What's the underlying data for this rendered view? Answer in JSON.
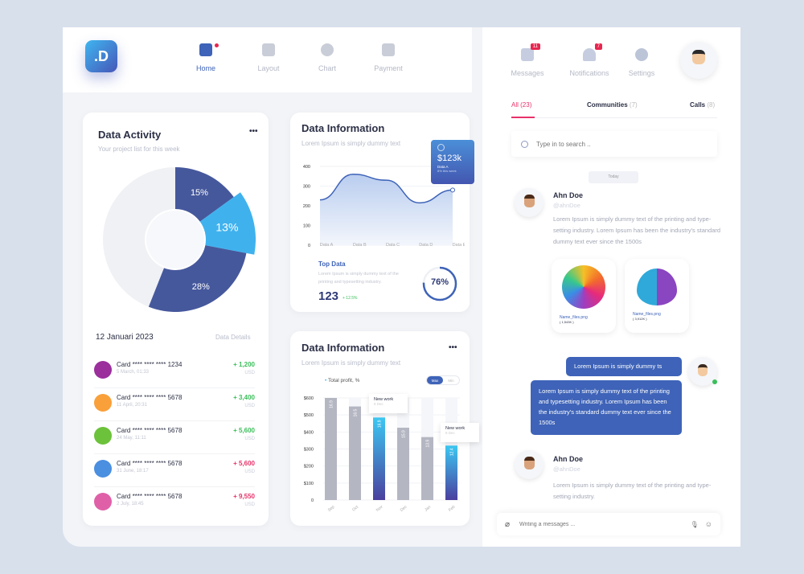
{
  "logo": ".D",
  "nav": [
    {
      "label": "Home",
      "active": true,
      "icon": "home-icon"
    },
    {
      "label": "Layout",
      "icon": "layout-icon"
    },
    {
      "label": "Chart",
      "icon": "pie-chart-icon"
    },
    {
      "label": "Payment",
      "icon": "wallet-icon"
    }
  ],
  "activity": {
    "title": "Data Activity",
    "subtitle": "Your project list for this week",
    "menu": "•••",
    "date": "12 Januari 2023",
    "details": "Data Details",
    "donut": [
      {
        "label": "15%",
        "value": 15,
        "color": "#46589c"
      },
      {
        "label": "13%",
        "value": 13,
        "color": "#3fb2ee"
      },
      {
        "label": "28%",
        "value": 28,
        "color": "#46589c"
      }
    ],
    "rows": [
      {
        "card": "Card **** **** **** 1234",
        "date": "5 March, 01:33",
        "amount": "+ 1,200",
        "unit": "USD",
        "positive": true,
        "color": "#9b2f9c"
      },
      {
        "card": "Card **** **** **** 5678",
        "date": "11 April, 20:31",
        "amount": "+ 3,400",
        "unit": "USD",
        "positive": true,
        "color": "#f9a03a"
      },
      {
        "card": "Card **** **** **** 5678",
        "date": "24 May, 11:11",
        "amount": "+ 5,600",
        "unit": "USD",
        "positive": true,
        "color": "#6cc23a"
      },
      {
        "card": "Card **** **** **** 5678",
        "date": "31 June, 18:17",
        "amount": "+ 5,600",
        "unit": "USD",
        "positive": false,
        "color": "#4a8fe0"
      },
      {
        "card": "Card **** **** **** 5678",
        "date": "2 July, 18:45",
        "amount": "+ 9,550",
        "unit": "USD",
        "positive": false,
        "color": "#e060a8"
      }
    ]
  },
  "info1": {
    "title": "Data Information",
    "subtitle": "Lorem Ipsum is simply dummy text",
    "tooltip": {
      "value": "$123k",
      "label": "Data A",
      "note": "8% this week"
    },
    "top": {
      "title": "Top Data",
      "text": "Lorem Ipsum is simply dummy text of the printing and typesetting industry.",
      "value": "123",
      "change": "+ 12.5%",
      "percent_label": "76%",
      "percent": 76
    }
  },
  "info2": {
    "title": "Data Information",
    "subtitle": "Lorem Ipsum is simply dummy text",
    "menu": "•••",
    "legend": "Total profit, %",
    "toggle": [
      "Max",
      "Min"
    ],
    "tooltips": [
      {
        "title": "New work",
        "date": "8 Dec"
      },
      {
        "title": "New work",
        "date": "8 Dec"
      }
    ]
  },
  "chart_data": [
    {
      "type": "area",
      "categories": [
        "Data A",
        "Data B",
        "Data C",
        "Data D",
        "Data E"
      ],
      "values": [
        230,
        360,
        330,
        215,
        280
      ],
      "ylim": [
        0,
        400
      ],
      "yticks": [
        "0",
        "100",
        "200",
        "300",
        "400"
      ]
    },
    {
      "type": "bar",
      "categories": [
        "Sep",
        "Oct",
        "Nov",
        "Dec",
        "Jan",
        "Feb"
      ],
      "values": [
        600,
        550,
        485,
        425,
        370,
        320
      ],
      "labels": [
        "16.9",
        "16.5",
        "16.9",
        "15.9",
        "13.9",
        "12.4"
      ],
      "highlight": [
        2,
        5
      ],
      "ylim": [
        0,
        600
      ],
      "yticks": [
        "0",
        "$100",
        "$200",
        "$300",
        "$400",
        "$500",
        "$600"
      ]
    }
  ],
  "top_right": {
    "items": [
      {
        "label": "Messages",
        "badge": "11",
        "icon": "mail-icon"
      },
      {
        "label": "Notifications",
        "badge": "7",
        "icon": "bell-icon"
      },
      {
        "label": "Settings",
        "icon": "gear-icon"
      }
    ]
  },
  "tabs": [
    {
      "label": "All",
      "count": "(23)",
      "active": true
    },
    {
      "label": "Communities",
      "count": "(7)"
    },
    {
      "label": "Calls",
      "count": "(8)"
    }
  ],
  "search": {
    "placeholder": "Type in to search .."
  },
  "chat": {
    "day": "Today",
    "m1": {
      "name": "Ahn Doe",
      "handle": "@ahnDoe",
      "text": "Lorem Ipsum is simply dummy text of the printing and type-setting industry. Lorem Ipsum has been the industry's standard dummy text ever since the 1500s",
      "files": [
        {
          "name": "Name_files.png",
          "size": "( 1,543K )"
        },
        {
          "name": "Name_files.png",
          "size": "( 3,912K )"
        }
      ]
    },
    "sent": [
      "Lorem Ipsum is simply dummy ts",
      "Lorem Ipsum is simply dummy text of the printing and typesetting industry. Lorem Ipsum has been the industry's standard dummy text ever since the 1500s"
    ],
    "m2": {
      "name": "Ahn Doe",
      "handle": "@ahnDoe",
      "text": "Lorem Ipsum is simply dummy text of the printing and type-setting industry."
    },
    "composer": "Writing a messages ..."
  }
}
